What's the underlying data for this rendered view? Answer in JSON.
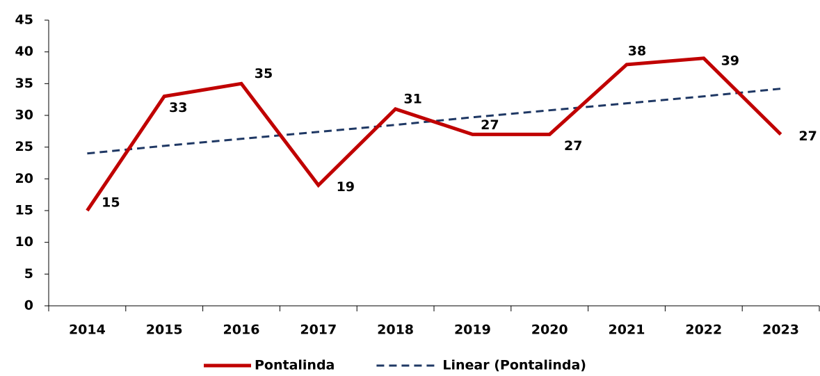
{
  "chart_data": {
    "type": "line",
    "categories": [
      "2014",
      "2015",
      "2016",
      "2017",
      "2018",
      "2019",
      "2020",
      "2021",
      "2022",
      "2023"
    ],
    "series": [
      {
        "name": "Pontalinda",
        "color": "#c00000",
        "values": [
          15,
          33,
          35,
          19,
          31,
          27,
          27,
          38,
          39,
          27
        ],
        "data_labels": true
      },
      {
        "name": "Linear (Pontalinda)",
        "color": "#1f3864",
        "dashed": true,
        "values": [
          24.0,
          25.2,
          26.3,
          27.4,
          28.5,
          29.7,
          30.8,
          31.9,
          33.0,
          34.2
        ]
      }
    ],
    "ylim": [
      0,
      45
    ],
    "yticks": [
      0,
      5,
      10,
      15,
      20,
      25,
      30,
      35,
      40,
      45
    ],
    "grid": false,
    "legend": "bottom"
  }
}
